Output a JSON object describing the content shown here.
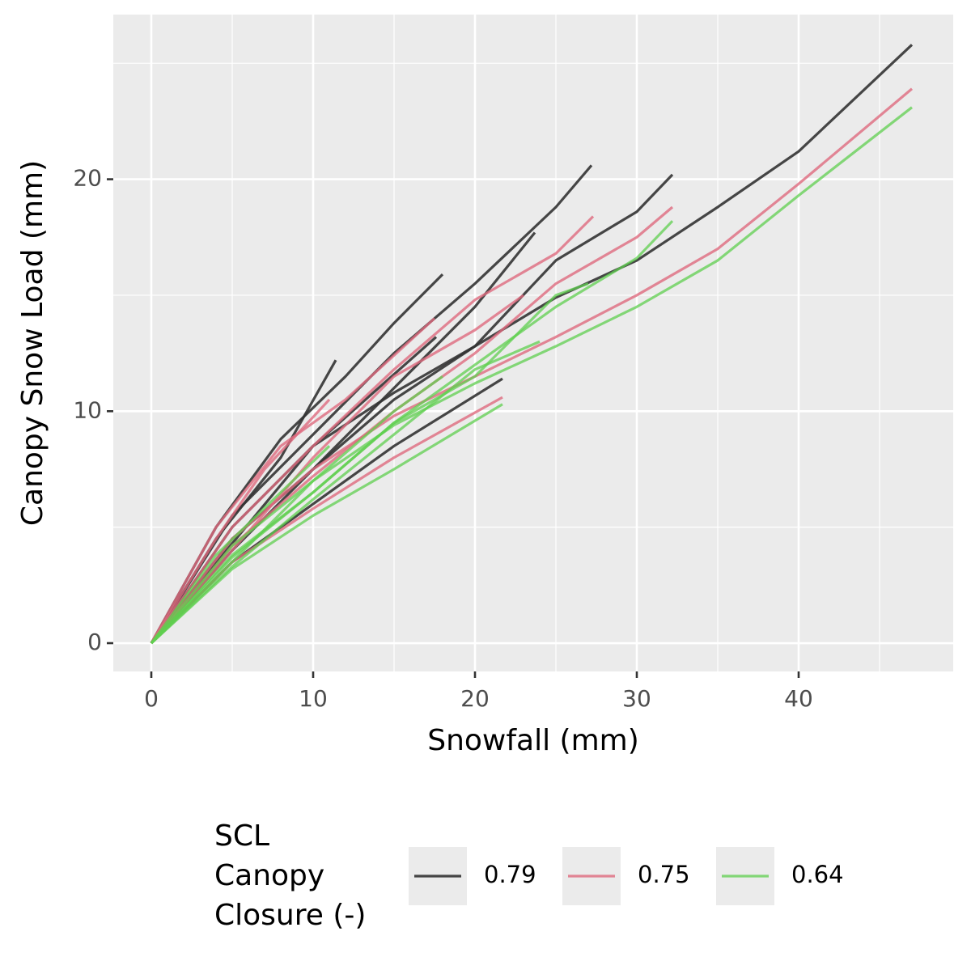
{
  "chart_data": {
    "type": "line",
    "xlabel": "Snowfall (mm)",
    "ylabel": "Canopy Snow Load (mm)",
    "xlim": [
      -2.35,
      49.55
    ],
    "ylim": [
      -1.22,
      27.1
    ],
    "xticks": [
      0,
      10,
      20,
      30,
      40
    ],
    "yticks": [
      0,
      10,
      20
    ],
    "xminor": [
      5,
      15,
      25,
      35,
      45
    ],
    "yminor": [
      5,
      15,
      25
    ],
    "grid": true,
    "legend_position": "bottom",
    "legend_title": [
      "SCL",
      "Canopy",
      "Closure (-)"
    ],
    "series": [
      {
        "name": "0.79",
        "color": "#333333",
        "alpha": 0.9,
        "lines": [
          {
            "x": [
              0,
              5,
              10,
              15,
              20,
              25,
              30,
              35,
              40,
              47
            ],
            "values": [
              0,
              5,
              8.5,
              10.8,
              12.8,
              14.9,
              16.5,
              18.8,
              21.2,
              25.8
            ]
          },
          {
            "x": [
              0,
              5,
              10,
              15,
              20,
              25,
              27.2
            ],
            "values": [
              0,
              5.5,
              9,
              12.5,
              15.5,
              18.8,
              20.6
            ]
          },
          {
            "x": [
              0,
              5,
              10,
              15,
              20,
              25,
              30,
              32.2
            ],
            "values": [
              0,
              4.5,
              7.5,
              10.5,
              12.8,
              16.5,
              18.6,
              20.2
            ]
          },
          {
            "x": [
              0,
              4,
              8,
              12,
              15,
              18
            ],
            "values": [
              0,
              5,
              8.8,
              11.5,
              13.8,
              15.9
            ]
          },
          {
            "x": [
              0,
              4,
              8,
              11.4
            ],
            "values": [
              0,
              4.5,
              8,
              12.2
            ]
          },
          {
            "x": [
              0,
              5,
              10,
              15,
              21.7
            ],
            "values": [
              0,
              3.5,
              6,
              8.5,
              11.4
            ]
          },
          {
            "x": [
              0,
              5,
              10,
              15,
              20,
              23.7
            ],
            "values": [
              0,
              4,
              7.5,
              11,
              14.5,
              17.7
            ]
          },
          {
            "x": [
              0,
              5,
              10,
              17.6
            ],
            "values": [
              0,
              4.3,
              8.5,
              13.2
            ]
          }
        ]
      },
      {
        "name": "0.75",
        "color": "#df6a7e",
        "alpha": 0.8,
        "lines": [
          {
            "x": [
              0,
              5,
              10,
              15,
              20,
              25,
              30,
              35,
              40,
              47
            ],
            "values": [
              0,
              4.5,
              7.5,
              9.8,
              11.5,
              13.2,
              15,
              17,
              19.8,
              23.9
            ]
          },
          {
            "x": [
              0,
              5,
              10,
              15,
              20,
              25,
              27.3
            ],
            "values": [
              0,
              5,
              8.5,
              11.8,
              14.8,
              16.8,
              18.4
            ]
          },
          {
            "x": [
              0,
              5,
              10,
              15,
              20,
              25,
              30,
              32.2
            ],
            "values": [
              0,
              4.2,
              7.2,
              10,
              12.5,
              15.5,
              17.5,
              18.8
            ]
          },
          {
            "x": [
              0,
              4,
              8,
              12,
              17.5
            ],
            "values": [
              0,
              5,
              8.5,
              10.5,
              14
            ]
          },
          {
            "x": [
              0,
              5,
              10,
              15,
              21.7
            ],
            "values": [
              0,
              3.5,
              5.8,
              8,
              10.6
            ]
          },
          {
            "x": [
              0,
              5,
              10,
              15,
              20,
              23
            ],
            "values": [
              0,
              4,
              8,
              11.5,
              13.5,
              15
            ]
          },
          {
            "x": [
              0,
              4,
              7,
              11
            ],
            "values": [
              0,
              4.5,
              7.5,
              10.5
            ]
          }
        ]
      },
      {
        "name": "0.64",
        "color": "#5fcf4f",
        "alpha": 0.75,
        "lines": [
          {
            "x": [
              0,
              5,
              10,
              15,
              20,
              25,
              30,
              35,
              40,
              47
            ],
            "values": [
              0,
              4.2,
              7,
              9.4,
              11.2,
              12.8,
              14.5,
              16.5,
              19.3,
              23.1
            ]
          },
          {
            "x": [
              0,
              5,
              10,
              15,
              20,
              25,
              27
            ],
            "values": [
              0,
              3.8,
              6.5,
              9.5,
              11.5,
              15,
              15.5
            ]
          },
          {
            "x": [
              0,
              5,
              10,
              15,
              20,
              25,
              30,
              32.2
            ],
            "values": [
              0,
              3.7,
              6.5,
              9.5,
              12,
              14.5,
              16.6,
              18.2
            ]
          },
          {
            "x": [
              0,
              5,
              10,
              15,
              21.7
            ],
            "values": [
              0,
              3.2,
              5.5,
              7.5,
              10.3
            ]
          },
          {
            "x": [
              0,
              5,
              10,
              15,
              18
            ],
            "values": [
              0,
              3.5,
              7,
              10,
              11.5
            ]
          },
          {
            "x": [
              0,
              5,
              10,
              15,
              20,
              24
            ],
            "values": [
              0,
              3.3,
              6.2,
              9,
              11.8,
              13
            ]
          },
          {
            "x": [
              0,
              4,
              8,
              11
            ],
            "values": [
              0,
              3.8,
              6.5,
              8.5
            ]
          }
        ]
      }
    ]
  }
}
